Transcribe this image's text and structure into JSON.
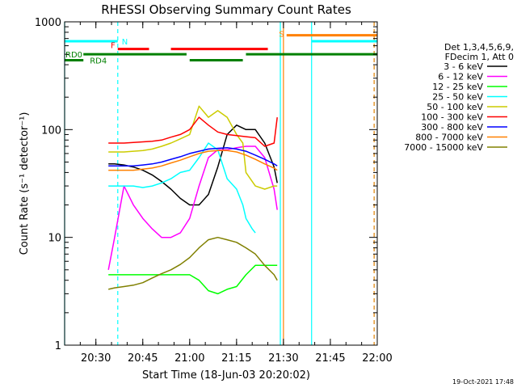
{
  "chart_data": {
    "type": "line",
    "title": "RHESSI Observing Summary Count Rates",
    "xlabel": "Start Time (18-Jun-03 20:20:02)",
    "ylabel": "Count Rate (s⁻¹ detector⁻¹)",
    "y_scale": "log",
    "ylim": [
      1,
      1000
    ],
    "xlim": [
      "20:20",
      "22:00"
    ],
    "x_ticks": [
      "20:30",
      "20:45",
      "21:00",
      "21:15",
      "21:30",
      "21:45",
      "22:00"
    ],
    "y_ticks": [
      "1",
      "10",
      "100",
      "1000"
    ],
    "footer_date": "19-Oct-2021 17:48",
    "legend": {
      "placement": "right",
      "header": [
        "Det 1,3,4,5,6,9,",
        "FDecim 1, Att 0"
      ]
    },
    "series": [
      {
        "name": "3 - 6 keV",
        "color": "#000000",
        "x": [
          "20:34",
          "20:36",
          "20:39",
          "20:42",
          "20:45",
          "20:48",
          "20:51",
          "20:54",
          "20:57",
          "21:00",
          "21:03",
          "21:06",
          "21:09",
          "21:12",
          "21:15",
          "21:18",
          "21:21",
          "21:24",
          "21:27",
          "21:28"
        ],
        "y": [
          48,
          48,
          47,
          45,
          42,
          38,
          33,
          28,
          23,
          20,
          20,
          25,
          45,
          90,
          110,
          100,
          100,
          75,
          45,
          32
        ]
      },
      {
        "name": "6 - 12 keV",
        "color": "#ff00ff",
        "x": [
          "20:34",
          "20:36",
          "20:39",
          "20:42",
          "20:45",
          "20:48",
          "20:51",
          "20:54",
          "20:57",
          "21:00",
          "21:03",
          "21:06",
          "21:09",
          "21:12",
          "21:15",
          "21:18",
          "21:21",
          "21:24",
          "21:27",
          "21:28"
        ],
        "y": [
          5,
          10,
          30,
          20,
          15,
          12,
          10,
          10,
          11,
          15,
          30,
          55,
          65,
          65,
          68,
          70,
          70,
          55,
          28,
          18
        ]
      },
      {
        "name": "12 - 25 keV",
        "color": "#00ff00",
        "x": [
          "20:34",
          "20:36",
          "20:39",
          "20:42",
          "20:45",
          "20:48",
          "20:51",
          "20:54",
          "20:57",
          "21:00",
          "21:03",
          "21:06",
          "21:09",
          "21:12",
          "21:15",
          "21:18",
          "21:21",
          "21:24",
          "21:27",
          "21:28"
        ],
        "y": [
          4.5,
          4.5,
          4.5,
          4.5,
          4.5,
          4.5,
          4.5,
          4.5,
          4.5,
          4.5,
          4,
          3.2,
          3,
          3.3,
          3.5,
          4.5,
          5.5,
          5.5,
          5.5,
          5.5
        ]
      },
      {
        "name": "25 - 50 keV",
        "color": "#00ffff",
        "x": [
          "20:34",
          "20:36",
          "20:39",
          "20:42",
          "20:45",
          "20:48",
          "20:51",
          "20:54",
          "20:57",
          "21:00",
          "21:03",
          "21:06",
          "21:09",
          "21:12",
          "21:15",
          "21:17",
          "21:18",
          "21:20",
          "21:21"
        ],
        "y": [
          30,
          30,
          30,
          30,
          29,
          30,
          32,
          35,
          40,
          42,
          55,
          75,
          65,
          35,
          28,
          20,
          15,
          12,
          11
        ]
      },
      {
        "name": "50 - 100 keV",
        "color": "#cccc00",
        "x": [
          "20:34",
          "20:36",
          "20:39",
          "20:42",
          "20:45",
          "20:48",
          "20:51",
          "20:54",
          "20:57",
          "21:00",
          "21:03",
          "21:06",
          "21:09",
          "21:12",
          "21:15",
          "21:17",
          "21:18",
          "21:21",
          "21:24",
          "21:27",
          "21:28"
        ],
        "y": [
          62,
          62,
          62,
          63,
          64,
          66,
          70,
          75,
          82,
          90,
          165,
          130,
          150,
          130,
          90,
          75,
          40,
          30,
          28,
          30,
          30
        ]
      },
      {
        "name": "100 - 300 keV",
        "color": "#ff0000",
        "x": [
          "20:34",
          "20:36",
          "20:39",
          "20:42",
          "20:45",
          "20:48",
          "20:51",
          "20:54",
          "20:57",
          "21:00",
          "21:03",
          "21:06",
          "21:09",
          "21:12",
          "21:15",
          "21:18",
          "21:21",
          "21:24",
          "21:27",
          "21:28"
        ],
        "y": [
          75,
          75,
          75,
          76,
          77,
          78,
          80,
          85,
          90,
          100,
          130,
          110,
          95,
          90,
          88,
          86,
          84,
          70,
          75,
          130
        ]
      },
      {
        "name": "300 - 800 keV",
        "color": "#0000ff",
        "x": [
          "20:34",
          "20:36",
          "20:39",
          "20:42",
          "20:45",
          "20:48",
          "20:51",
          "20:54",
          "20:57",
          "21:00",
          "21:03",
          "21:06",
          "21:09",
          "21:12",
          "21:15",
          "21:18",
          "21:21",
          "21:24",
          "21:27",
          "21:28"
        ],
        "y": [
          46,
          46,
          46,
          46,
          47,
          48,
          50,
          53,
          56,
          60,
          63,
          66,
          67,
          68,
          66,
          63,
          58,
          53,
          48,
          46
        ]
      },
      {
        "name": "800 - 7000 keV",
        "color": "#ff8000",
        "x": [
          "20:34",
          "20:36",
          "20:39",
          "20:42",
          "20:45",
          "20:48",
          "20:51",
          "20:54",
          "20:57",
          "21:00",
          "21:03",
          "21:06",
          "21:09",
          "21:12",
          "21:15",
          "21:18",
          "21:21",
          "21:24",
          "21:27",
          "21:28"
        ],
        "y": [
          42,
          42,
          42,
          42,
          43,
          44,
          46,
          49,
          52,
          56,
          60,
          63,
          64,
          64,
          62,
          58,
          53,
          48,
          44,
          42
        ]
      },
      {
        "name": "7000 - 15000 keV",
        "color": "#808000",
        "x": [
          "20:34",
          "20:36",
          "20:39",
          "20:42",
          "20:45",
          "20:48",
          "20:51",
          "20:54",
          "20:57",
          "21:00",
          "21:03",
          "21:06",
          "21:09",
          "21:12",
          "21:15",
          "21:18",
          "21:21",
          "21:24",
          "21:27",
          "21:28"
        ],
        "y": [
          3.3,
          3.4,
          3.5,
          3.6,
          3.8,
          4.2,
          4.6,
          5,
          5.6,
          6.5,
          8,
          9.5,
          10,
          9.5,
          9,
          8,
          7,
          5.5,
          4.5,
          4
        ]
      }
    ],
    "annotations": {
      "flag_labels": [
        {
          "label": "N",
          "color": "#00ffff"
        },
        {
          "label": "F",
          "color": "#ff0000"
        },
        {
          "label": "S",
          "color": "#ff8000"
        },
        {
          "label": "RD0",
          "color": "#008000"
        },
        {
          "label": "RD4",
          "color": "#008000"
        }
      ],
      "flag_bars": [
        {
          "flag": "N",
          "color": "#00ffff",
          "y": 660,
          "start": "20:20",
          "end": "20:37"
        },
        {
          "flag": "N",
          "color": "#00ffff",
          "y": 660,
          "start": "21:39",
          "end": "22:00"
        },
        {
          "flag": "F",
          "color": "#ff0000",
          "y": 560,
          "start": "20:37",
          "end": "20:47"
        },
        {
          "flag": "F",
          "color": "#ff0000",
          "y": 560,
          "start": "20:54",
          "end": "21:25"
        },
        {
          "flag": "S",
          "color": "#ff8000",
          "y": 750,
          "start": "21:31",
          "end": "22:00"
        },
        {
          "flag": "RD0",
          "color": "#008000",
          "y": 500,
          "start": "20:26",
          "end": "20:59"
        },
        {
          "flag": "RD0",
          "color": "#008000",
          "y": 500,
          "start": "21:18",
          "end": "22:00"
        },
        {
          "flag": "RD4",
          "color": "#008000",
          "y": 440,
          "start": "20:20",
          "end": "20:26"
        },
        {
          "flag": "RD4",
          "color": "#008000",
          "y": 440,
          "start": "21:00",
          "end": "21:17"
        }
      ],
      "vertical_lines": [
        {
          "t": "20:20",
          "color": "#00ffff",
          "style": "solid"
        },
        {
          "t": "20:37",
          "color": "#00ffff",
          "style": "dashed"
        },
        {
          "t": "21:29",
          "color": "#00ffff",
          "style": "solid"
        },
        {
          "t": "21:30",
          "color": "#ff8000",
          "style": "solid"
        },
        {
          "t": "21:39",
          "color": "#00ffff",
          "style": "solid"
        },
        {
          "t": "21:59",
          "color": "#00ffff",
          "style": "dashed"
        },
        {
          "t": "21:59",
          "color": "#ff8000",
          "style": "dashed"
        }
      ]
    }
  }
}
